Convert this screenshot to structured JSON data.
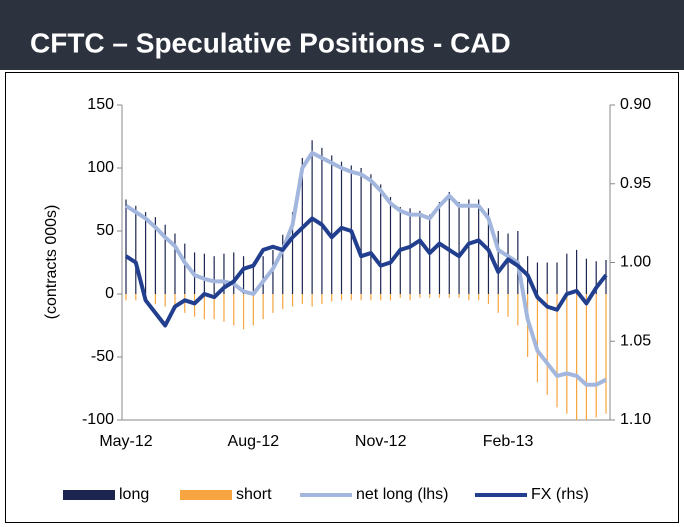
{
  "chart_data": {
    "type": "combo",
    "title": "CFTC – Speculative Positions - CAD",
    "y_label": "(contracts 000s)",
    "categories": [
      "May-12",
      null,
      null,
      null,
      null,
      null,
      null,
      null,
      null,
      null,
      null,
      null,
      null,
      "Aug-12",
      null,
      null,
      null,
      null,
      null,
      null,
      null,
      null,
      null,
      null,
      null,
      null,
      "Nov-12",
      null,
      null,
      null,
      null,
      null,
      null,
      null,
      null,
      null,
      null,
      null,
      null,
      "Feb-13",
      null,
      null,
      null,
      null,
      null,
      null,
      null,
      null,
      null,
      null
    ],
    "ylim": [
      -100,
      150
    ],
    "yticks": [
      -100,
      -50,
      0,
      50,
      100,
      150
    ],
    "y2lim": [
      1.1,
      0.9
    ],
    "y2ticks": [
      {
        "value": 0.9,
        "label": "0.90"
      },
      0.95,
      {
        "value": 1.0,
        "label": "1.00"
      },
      1.05,
      {
        "value": 1.1,
        "label": "1.10"
      }
    ],
    "series": [
      {
        "name": "long",
        "type": "bar",
        "color": "#1c2550",
        "values": [
          75,
          70,
          65,
          61,
          55,
          48,
          40,
          33,
          32,
          30,
          32,
          33,
          30,
          25,
          30,
          35,
          47,
          65,
          108,
          122,
          116,
          110,
          105,
          102,
          100,
          95,
          87,
          77,
          69,
          68,
          66,
          63,
          73,
          81,
          73,
          75,
          75,
          68,
          50,
          48,
          50,
          30,
          25,
          25,
          25,
          32,
          35,
          28,
          26,
          27
        ]
      },
      {
        "name": "short",
        "type": "bar",
        "color": "#f6a540",
        "values": [
          -5,
          -5,
          -5,
          -8,
          -10,
          -10,
          -15,
          -18,
          -20,
          -20,
          -22,
          -25,
          -28,
          -25,
          -20,
          -15,
          -12,
          -10,
          -8,
          -10,
          -8,
          -6,
          -5,
          -5,
          -5,
          -5,
          -5,
          -5,
          -3,
          -5,
          -3,
          -3,
          -3,
          -3,
          -3,
          -5,
          -5,
          -8,
          -15,
          -18,
          -25,
          -50,
          -70,
          -80,
          -90,
          -95,
          -100,
          -100,
          -98,
          -95
        ]
      },
      {
        "name": "net long (lhs)",
        "type": "line",
        "color": "#a3b6dd",
        "values": [
          70,
          65,
          60,
          53,
          45,
          38,
          25,
          15,
          12,
          10,
          10,
          8,
          2,
          0,
          10,
          20,
          35,
          55,
          100,
          112,
          108,
          104,
          100,
          97,
          95,
          90,
          82,
          72,
          66,
          63,
          63,
          60,
          70,
          78,
          70,
          70,
          70,
          60,
          35,
          30,
          25,
          -20,
          -45,
          -55,
          -65,
          -63,
          -65,
          -72,
          -72,
          -68
        ]
      },
      {
        "name": "FX (rhs)",
        "type": "line",
        "axis": "y2",
        "color": "#213f8e",
        "values": [
          0.996,
          1.0,
          1.024,
          1.032,
          1.04,
          1.028,
          1.024,
          1.026,
          1.02,
          1.022,
          1.016,
          1.012,
          1.004,
          1.002,
          0.992,
          0.99,
          0.992,
          0.984,
          0.978,
          0.972,
          0.976,
          0.984,
          0.978,
          0.98,
          0.996,
          0.994,
          1.002,
          1.0,
          0.992,
          0.99,
          0.986,
          0.994,
          0.988,
          0.992,
          0.996,
          0.988,
          0.986,
          0.992,
          1.006,
          0.998,
          1.002,
          1.008,
          1.022,
          1.028,
          1.03,
          1.02,
          1.018,
          1.026,
          1.016,
          1.008
        ]
      }
    ]
  }
}
